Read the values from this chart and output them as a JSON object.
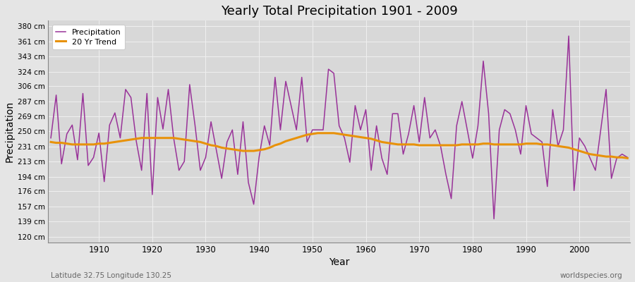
{
  "title": "Yearly Total Precipitation 1901 - 2009",
  "xlabel": "Year",
  "ylabel": "Precipitation",
  "subtitle_left": "Latitude 32.75 Longitude 130.25",
  "subtitle_right": "worldspecies.org",
  "years": [
    1901,
    1902,
    1903,
    1904,
    1905,
    1906,
    1907,
    1908,
    1909,
    1910,
    1911,
    1912,
    1913,
    1914,
    1915,
    1916,
    1917,
    1918,
    1919,
    1920,
    1921,
    1922,
    1923,
    1924,
    1925,
    1926,
    1927,
    1928,
    1929,
    1930,
    1931,
    1932,
    1933,
    1934,
    1935,
    1936,
    1937,
    1938,
    1939,
    1940,
    1941,
    1942,
    1943,
    1944,
    1945,
    1946,
    1947,
    1948,
    1949,
    1950,
    1951,
    1952,
    1953,
    1954,
    1955,
    1956,
    1957,
    1958,
    1959,
    1960,
    1961,
    1962,
    1963,
    1964,
    1965,
    1966,
    1967,
    1968,
    1969,
    1970,
    1971,
    1972,
    1973,
    1974,
    1975,
    1976,
    1977,
    1978,
    1979,
    1980,
    1981,
    1982,
    1983,
    1984,
    1985,
    1986,
    1987,
    1988,
    1989,
    1990,
    1991,
    1992,
    1993,
    1994,
    1995,
    1996,
    1997,
    1998,
    1999,
    2000,
    2001,
    2002,
    2003,
    2004,
    2005,
    2006,
    2007,
    2008,
    2009
  ],
  "precip": [
    242,
    295,
    210,
    247,
    258,
    215,
    297,
    208,
    218,
    248,
    188,
    258,
    273,
    242,
    302,
    292,
    238,
    202,
    297,
    172,
    292,
    253,
    302,
    242,
    202,
    213,
    308,
    258,
    202,
    218,
    262,
    227,
    192,
    237,
    252,
    197,
    262,
    187,
    160,
    218,
    257,
    233,
    317,
    252,
    312,
    282,
    252,
    317,
    237,
    252,
    252,
    252,
    327,
    322,
    257,
    242,
    212,
    282,
    252,
    277,
    202,
    257,
    217,
    197,
    272,
    272,
    222,
    247,
    282,
    237,
    292,
    242,
    252,
    232,
    197,
    167,
    257,
    287,
    252,
    217,
    257,
    337,
    272,
    142,
    252,
    277,
    272,
    252,
    222,
    282,
    247,
    242,
    237,
    182,
    277,
    232,
    252,
    368,
    177,
    242,
    232,
    217,
    202,
    252,
    302,
    192,
    217,
    222,
    218
  ],
  "trend": [
    237,
    236,
    236,
    235,
    234,
    234,
    234,
    234,
    234,
    235,
    235,
    236,
    237,
    238,
    239,
    240,
    241,
    242,
    242,
    242,
    242,
    242,
    242,
    242,
    241,
    240,
    239,
    238,
    237,
    235,
    233,
    232,
    230,
    229,
    228,
    227,
    226,
    226,
    226,
    227,
    228,
    230,
    233,
    235,
    238,
    240,
    242,
    244,
    246,
    247,
    248,
    248,
    248,
    248,
    247,
    246,
    245,
    244,
    243,
    242,
    241,
    239,
    237,
    236,
    235,
    234,
    234,
    234,
    234,
    233,
    233,
    233,
    233,
    233,
    233,
    233,
    233,
    234,
    234,
    234,
    234,
    235,
    235,
    234,
    234,
    234,
    234,
    234,
    234,
    235,
    235,
    235,
    234,
    234,
    233,
    232,
    231,
    230,
    228,
    226,
    224,
    222,
    221,
    220,
    219,
    219,
    218,
    218,
    217
  ],
  "precip_color": "#993399",
  "trend_color": "#e8920a",
  "bg_color": "#e5e5e5",
  "plot_bg_color": "#d8d8d8",
  "grid_color": "#f0f0f0",
  "yticks": [
    120,
    139,
    157,
    176,
    194,
    213,
    231,
    250,
    269,
    287,
    306,
    324,
    343,
    361,
    380
  ],
  "ylim": [
    113,
    387
  ],
  "xlim": [
    1900.5,
    2009.5
  ]
}
